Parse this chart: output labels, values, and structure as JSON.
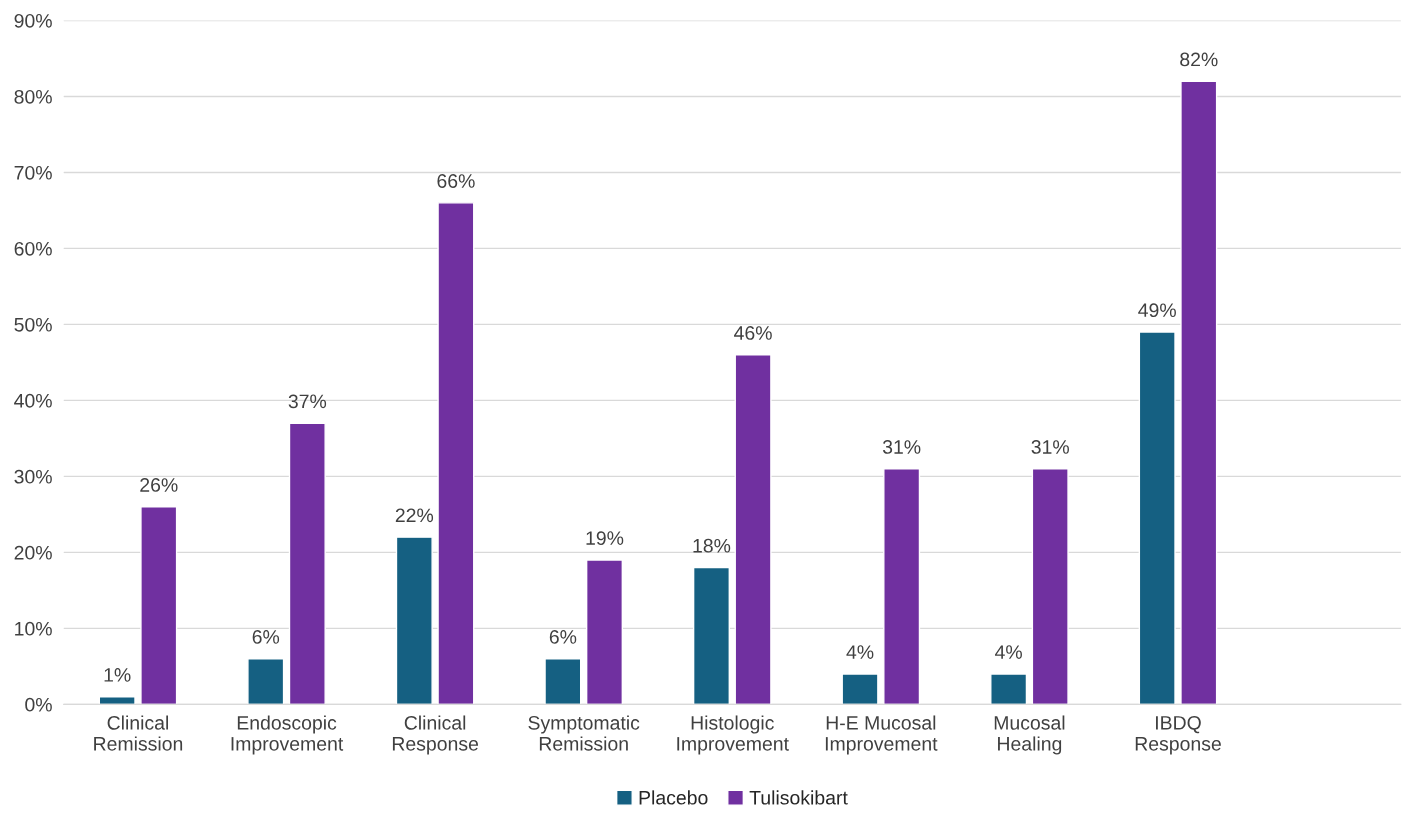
{
  "chart_data": {
    "type": "bar",
    "categories": [
      "Clinical\nRemission",
      "Endoscopic\nImprovement",
      "Clinical\nResponse",
      "Symptomatic\nRemission",
      "Histologic\nImprovement",
      "H-E Mucosal\nImprovement",
      "Mucosal\nHealing",
      "IBDQ\nResponse",
      null
    ],
    "series": [
      {
        "name": "Placebo",
        "color": "#156082",
        "values": [
          1,
          6,
          22,
          6,
          18,
          4,
          4,
          49,
          null
        ],
        "value_labels": [
          "1%",
          "6%",
          "22%",
          "6%",
          "18%",
          "4%",
          "4%",
          "49%",
          null
        ]
      },
      {
        "name": "Tulisokibart",
        "color": "#7030a0",
        "values": [
          26,
          37,
          66,
          19,
          46,
          31,
          31,
          82,
          null
        ],
        "value_labels": [
          "26%",
          "37%",
          "66%",
          "19%",
          "46%",
          "31%",
          "31%",
          "82%",
          null
        ]
      }
    ],
    "ylim": [
      0,
      90
    ],
    "yticks": [
      {
        "value": 0,
        "label": "0%"
      },
      {
        "value": 10,
        "label": "10%"
      },
      {
        "value": 20,
        "label": "20%"
      },
      {
        "value": 30,
        "label": "30%"
      },
      {
        "value": 40,
        "label": "40%"
      },
      {
        "value": 50,
        "label": "50%"
      },
      {
        "value": 60,
        "label": "60%"
      },
      {
        "value": 70,
        "label": "70%"
      },
      {
        "value": 80,
        "label": "80%"
      },
      {
        "value": 90,
        "label": "90%"
      }
    ],
    "grid": "y",
    "legend": "bottom"
  }
}
